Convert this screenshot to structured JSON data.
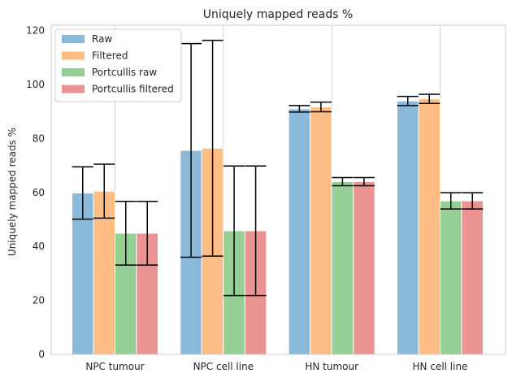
{
  "chart_data": {
    "type": "bar",
    "title": "Uniquely mapped reads %",
    "xlabel": "",
    "ylabel": "Uniquely mapped reads %",
    "ylim": [
      0,
      122
    ],
    "yticks": [
      0,
      20,
      40,
      60,
      80,
      100,
      120
    ],
    "grid": "vertical",
    "legend_position": "top-left",
    "categories": [
      "NPC tumour",
      "NPC cell line",
      "HN tumour",
      "HN cell line"
    ],
    "series": [
      {
        "name": "Raw",
        "color": "#8ab9d9",
        "values": [
          59.8,
          75.6,
          91.0,
          93.9
        ],
        "errors": [
          9.7,
          39.6,
          1.2,
          1.7
        ]
      },
      {
        "name": "Filtered",
        "color": "#ffbe86",
        "values": [
          60.5,
          76.4,
          91.7,
          94.7
        ],
        "errors": [
          10.0,
          40.0,
          1.8,
          1.7
        ]
      },
      {
        "name": "Portcullis raw",
        "color": "#95cf95",
        "values": [
          44.9,
          45.8,
          64.0,
          56.9
        ],
        "errors": [
          11.8,
          24.0,
          1.5,
          3.0
        ]
      },
      {
        "name": "Portcullis filtered",
        "color": "#ea9393",
        "values": [
          44.9,
          45.8,
          64.0,
          56.9
        ],
        "errors": [
          11.8,
          24.0,
          1.5,
          3.0
        ]
      }
    ]
  }
}
